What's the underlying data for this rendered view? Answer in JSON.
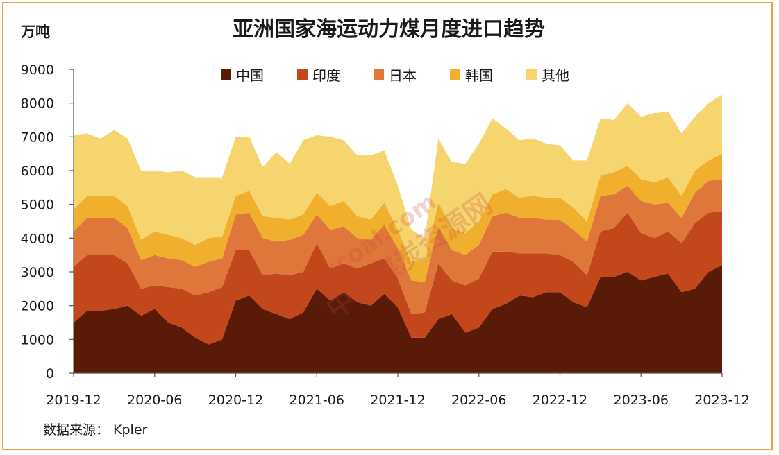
{
  "chart_data": {
    "type": "area",
    "stacked": true,
    "title": "亚洲国家海运动力煤月度进口趋势",
    "unit_label": "万吨",
    "source": "数据来源： Kpler",
    "ylim": [
      0,
      9000
    ],
    "yticks": [
      0,
      1000,
      2000,
      3000,
      4000,
      5000,
      6000,
      7000,
      8000,
      9000
    ],
    "x_tick_labels": [
      "2019-12",
      "2020-06",
      "2020-12",
      "2021-06",
      "2021-12",
      "2022-06",
      "2022-12",
      "2023-06",
      "2023-12"
    ],
    "x_tick_interval": 6,
    "legend_position": "top",
    "grid": false,
    "x": [
      "2019-12",
      "2020-01",
      "2020-02",
      "2020-03",
      "2020-04",
      "2020-05",
      "2020-06",
      "2020-07",
      "2020-08",
      "2020-09",
      "2020-10",
      "2020-11",
      "2020-12",
      "2021-01",
      "2021-02",
      "2021-03",
      "2021-04",
      "2021-05",
      "2021-06",
      "2021-07",
      "2021-08",
      "2021-09",
      "2021-10",
      "2021-11",
      "2021-12",
      "2022-01",
      "2022-02",
      "2022-03",
      "2022-04",
      "2022-05",
      "2022-06",
      "2022-07",
      "2022-08",
      "2022-09",
      "2022-10",
      "2022-11",
      "2022-12",
      "2023-01",
      "2023-02",
      "2023-03",
      "2023-04",
      "2023-05",
      "2023-06",
      "2023-07",
      "2023-08",
      "2023-09",
      "2023-10",
      "2023-11",
      "2023-12"
    ],
    "series": [
      {
        "name": "中国",
        "color": "#5a1a08",
        "values": [
          1500,
          1850,
          1850,
          1900,
          2000,
          1700,
          1900,
          1500,
          1350,
          1050,
          850,
          1000,
          2150,
          2300,
          1900,
          1750,
          1600,
          1800,
          2500,
          2150,
          2400,
          2100,
          2000,
          2350,
          1950,
          1050,
          1050,
          1600,
          1750,
          1200,
          1350,
          1900,
          2050,
          2300,
          2250,
          2400,
          2400,
          2100,
          1950,
          2850,
          2850,
          3000,
          2750,
          2850,
          2950,
          2400,
          2500,
          3000,
          3200
        ]
      },
      {
        "name": "印度",
        "color": "#c2471b",
        "values": [
          1650,
          1650,
          1650,
          1600,
          1250,
          800,
          700,
          1050,
          1150,
          1250,
          1550,
          1550,
          1500,
          1350,
          1000,
          1200,
          1300,
          1200,
          1350,
          950,
          850,
          1000,
          1250,
          1050,
          850,
          700,
          750,
          1650,
          1000,
          1400,
          1450,
          1700,
          1550,
          1250,
          1300,
          1150,
          1100,
          1200,
          950,
          1350,
          1450,
          1750,
          1400,
          1150,
          1250,
          1450,
          1950,
          1750,
          1600
        ]
      },
      {
        "name": "日本",
        "color": "#e0773a",
        "values": [
          1050,
          1100,
          1100,
          1100,
          1050,
          850,
          900,
          850,
          850,
          850,
          900,
          850,
          1050,
          1100,
          1100,
          950,
          1050,
          1100,
          850,
          1150,
          1100,
          900,
          700,
          1000,
          900,
          1000,
          900,
          1100,
          900,
          900,
          1000,
          1050,
          1150,
          1050,
          1050,
          1000,
          1050,
          950,
          1000,
          1050,
          1000,
          800,
          950,
          1000,
          850,
          750,
          900,
          950,
          950
        ]
      },
      {
        "name": "韩国",
        "color": "#f0b02e",
        "values": [
          650,
          650,
          650,
          650,
          650,
          600,
          700,
          700,
          650,
          650,
          700,
          650,
          550,
          650,
          650,
          700,
          600,
          600,
          650,
          700,
          750,
          650,
          600,
          650,
          550,
          550,
          650,
          700,
          650,
          650,
          700,
          650,
          700,
          600,
          650,
          650,
          650,
          650,
          600,
          600,
          650,
          600,
          650,
          650,
          750,
          650,
          650,
          600,
          750
        ]
      },
      {
        "name": "其他",
        "color": "#f7d56e",
        "values": [
          2200,
          1850,
          1700,
          1950,
          2000,
          2050,
          1800,
          1850,
          2000,
          2000,
          1800,
          1750,
          1750,
          1600,
          1450,
          1950,
          1650,
          2200,
          1700,
          2050,
          1800,
          1800,
          1900,
          1550,
          1300,
          950,
          650,
          1900,
          1950,
          2050,
          2300,
          2250,
          1800,
          1700,
          1700,
          1600,
          1550,
          1400,
          1800,
          1700,
          1550,
          1850,
          1850,
          2050,
          1950,
          1850,
          1600,
          1700,
          1750
        ]
      }
    ]
  },
  "watermark": {
    "site": "sxcoal.com",
    "name": "中国煤炭资源网"
  }
}
